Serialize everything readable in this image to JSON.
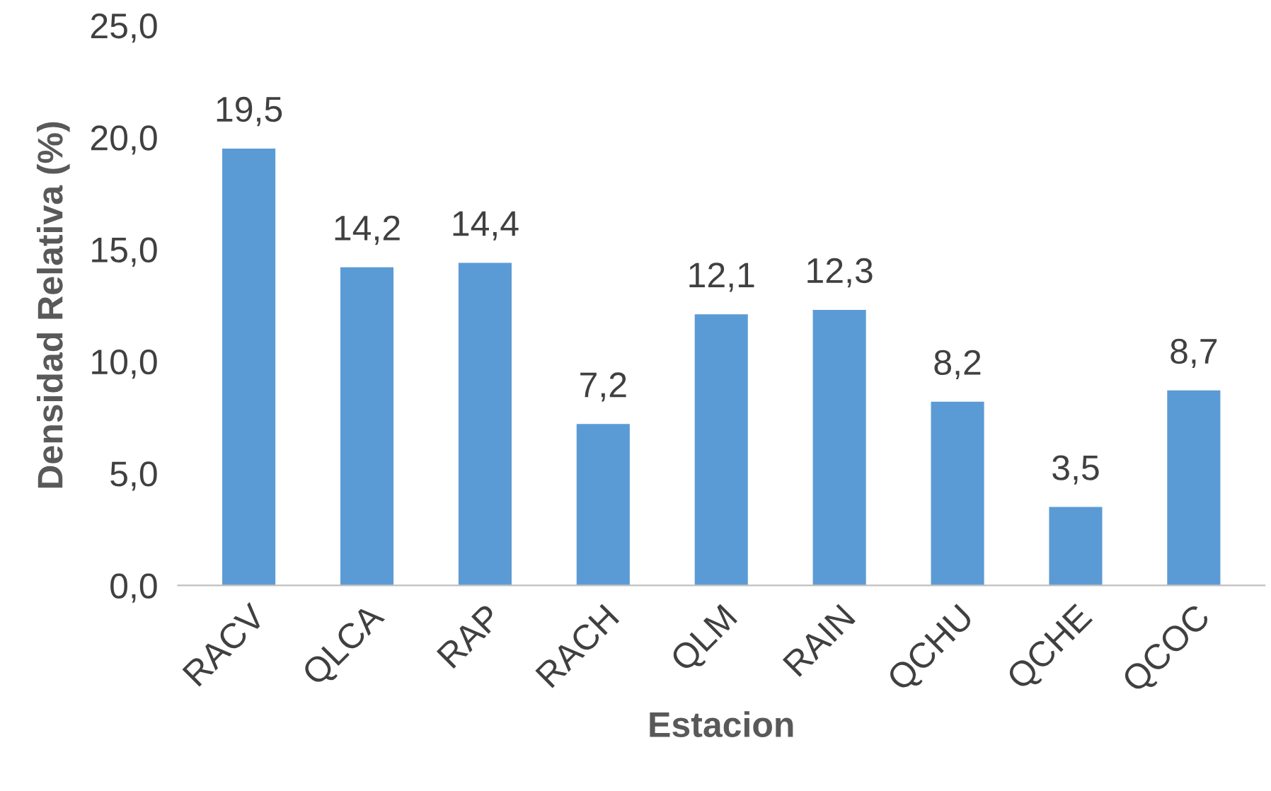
{
  "chart_data": {
    "type": "bar",
    "xlabel": "Estacion",
    "ylabel": "Densidad Relativa (%)",
    "categories": [
      "RACV",
      "QLCA",
      "RAP",
      "RACH",
      "QLM",
      "RAIN",
      "QCHU",
      "QCHE",
      "QCOC"
    ],
    "values": [
      19.5,
      14.2,
      14.4,
      7.2,
      12.1,
      12.3,
      8.2,
      3.5,
      8.7
    ],
    "value_labels": [
      "19,5",
      "14,2",
      "14,4",
      "7,2",
      "12,1",
      "12,3",
      "8,2",
      "3,5",
      "8,7"
    ],
    "color": "#5b9bd5",
    "ylim": [
      0,
      25
    ],
    "yticks": [
      {
        "value": 0,
        "label": "0,0"
      },
      {
        "value": 5,
        "label": "5,0"
      },
      {
        "value": 10,
        "label": "10,0"
      },
      {
        "value": 15,
        "label": "15,0"
      },
      {
        "value": 20,
        "label": "20,0"
      },
      {
        "value": 25,
        "label": "25,0"
      }
    ],
    "grid": false,
    "legend": false
  }
}
